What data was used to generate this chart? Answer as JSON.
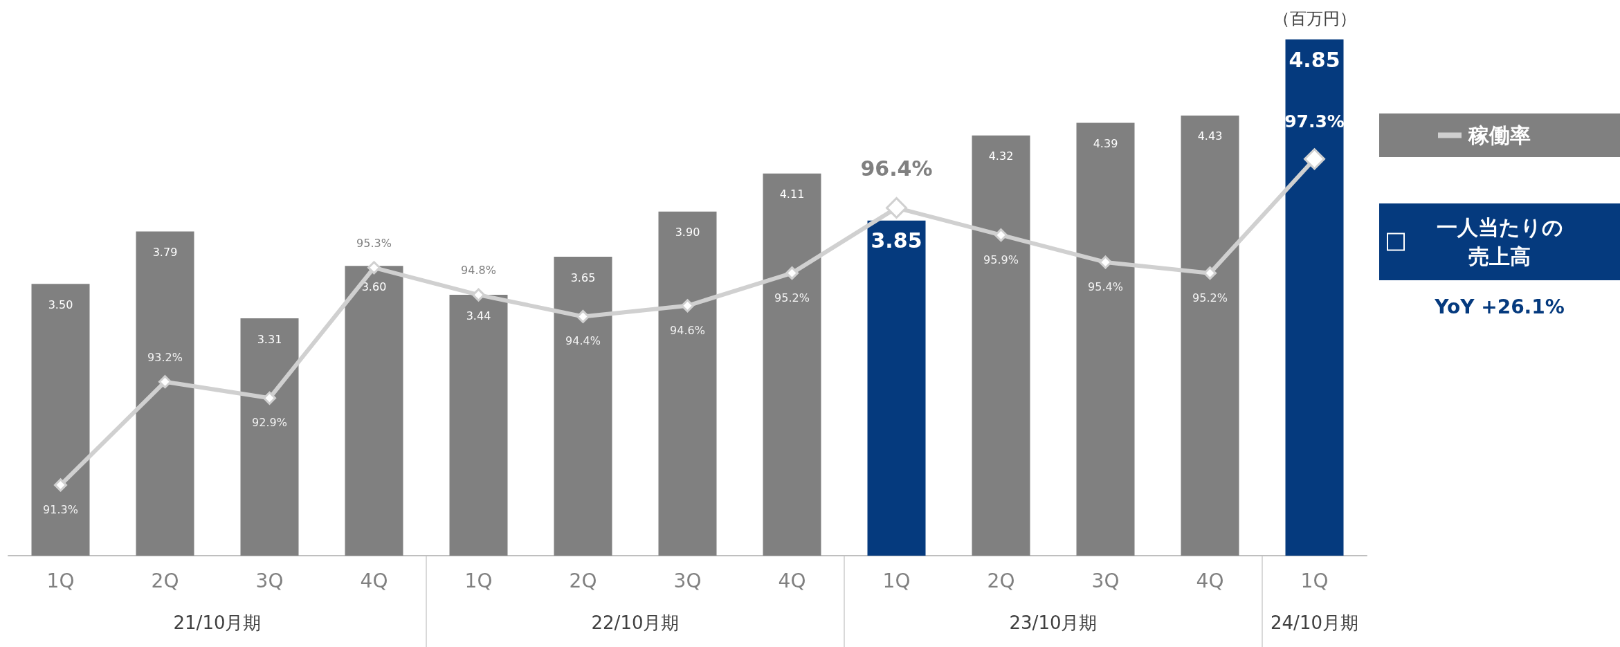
{
  "chart_data": {
    "type": "bar",
    "categories": [
      "1Q",
      "2Q",
      "3Q",
      "4Q",
      "1Q",
      "2Q",
      "3Q",
      "4Q",
      "1Q",
      "2Q",
      "3Q",
      "4Q",
      "1Q"
    ],
    "series": [
      {
        "name": "一人当たりの売上高",
        "color": "#053a7e",
        "colors": [
          "#808080",
          "#808080",
          "#808080",
          "#808080",
          "#808080",
          "#808080",
          "#808080",
          "#808080",
          "#053a7e",
          "#808080",
          "#808080",
          "#808080",
          "#053a7e"
        ],
        "values": [
          3.5,
          3.79,
          3.31,
          3.6,
          3.44,
          3.65,
          3.9,
          4.11,
          3.85,
          4.32,
          4.39,
          4.43,
          4.85
        ],
        "value_labels": [
          "3.50",
          "3.79",
          "3.31",
          "3.60",
          "3.44",
          "3.65",
          "3.90",
          "4.11",
          "3.85",
          "4.32",
          "4.39",
          "4.43",
          "4.85"
        ]
      },
      {
        "name": "稼働率",
        "type": "line",
        "axis": "y2",
        "color": "#d0d0d0",
        "values": [
          91.3,
          93.2,
          92.9,
          95.3,
          94.8,
          94.4,
          94.6,
          95.2,
          96.4,
          95.9,
          95.4,
          95.2,
          97.3
        ],
        "value_labels": [
          "91.3%",
          "93.2%",
          "92.9%",
          "95.3%",
          "94.8%",
          "94.4%",
          "94.6%",
          "95.2%",
          "96.4%",
          "95.9%",
          "95.4%",
          "95.2%",
          "97.3%"
        ]
      }
    ],
    "ylim": [
      2,
      4.85
    ],
    "y2lim": [
      90,
      99.5
    ],
    "tick_labels": "x",
    "marker": "diamond",
    "legend": "right",
    "annotations": [
      "（百万円）",
      "YoY +26.1%",
      "21/10月期",
      "22/10月期",
      "23/10月期",
      "24/10月期"
    ]
  }
}
